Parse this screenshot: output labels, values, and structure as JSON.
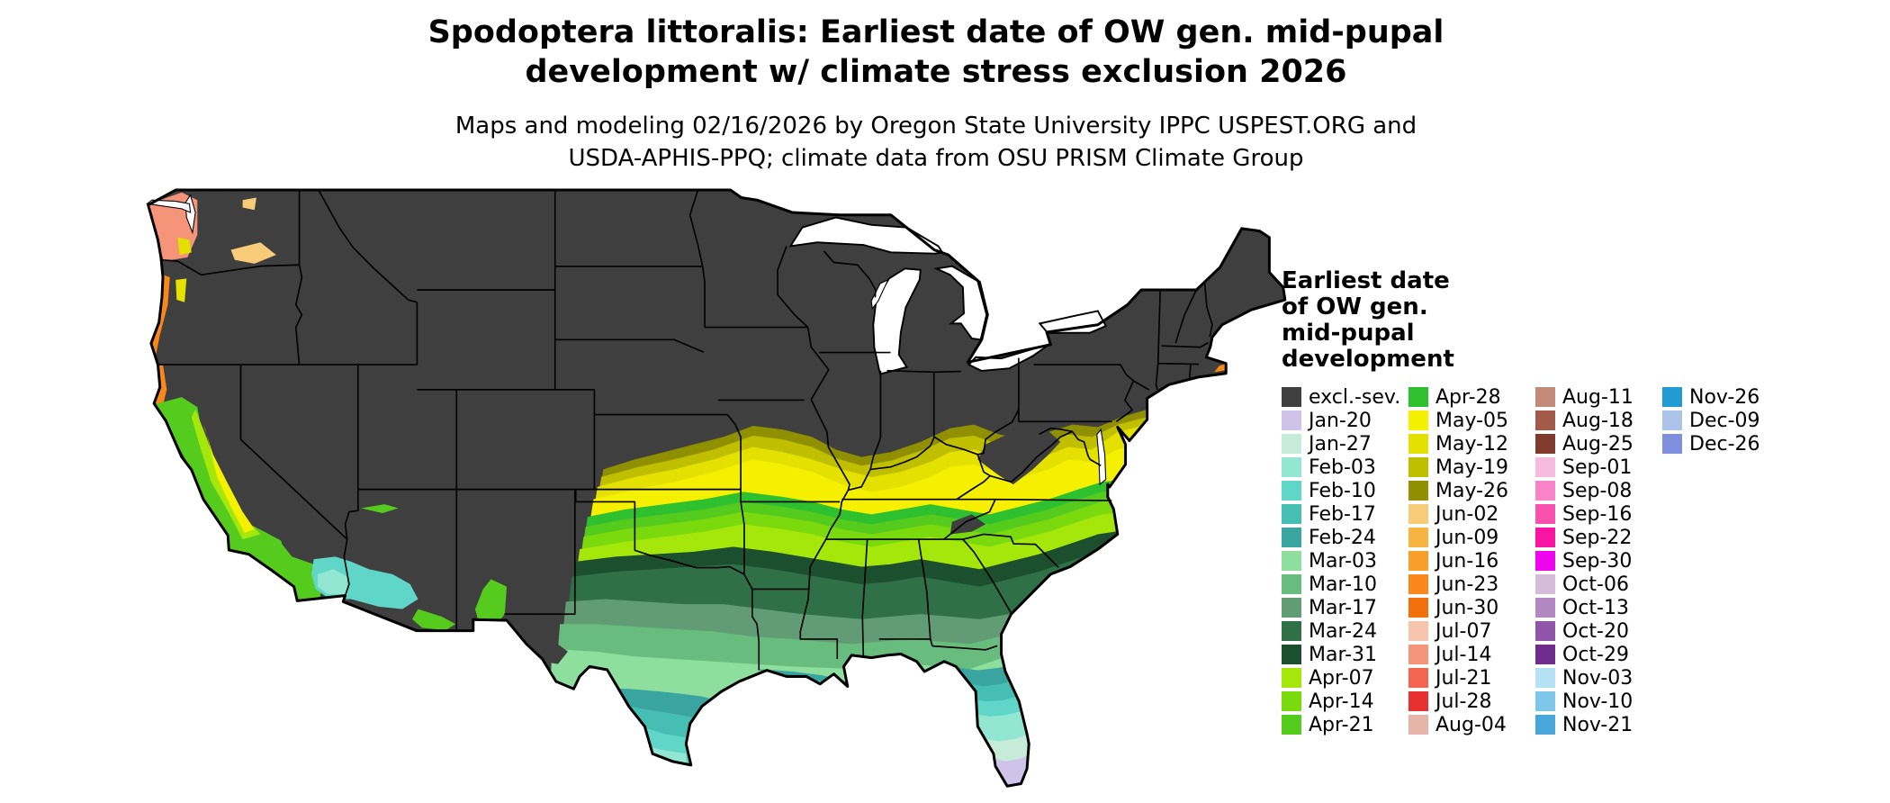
{
  "title": {
    "line1": "Spodoptera littoralis: Earliest date of OW gen. mid-pupal",
    "line2": "development w/ climate stress exclusion 2026"
  },
  "subtitle": {
    "line1": "Maps and modeling 02/16/2026 by Oregon State University IPPC USPEST.ORG and",
    "line2": "USDA-APHIS-PPQ; climate data from OSU PRISM Climate Group"
  },
  "legend": {
    "title_lines": [
      "Earliest date",
      "of OW gen.",
      "mid-pupal",
      "development"
    ],
    "rows_per_column": [
      15,
      15,
      15,
      3
    ],
    "entries": [
      {
        "label": "excl.-sev.",
        "color": "#3f3f3f"
      },
      {
        "label": "Jan-20",
        "color": "#cfc3ea"
      },
      {
        "label": "Jan-27",
        "color": "#c6ecd9"
      },
      {
        "label": "Feb-03",
        "color": "#93e6d2"
      },
      {
        "label": "Feb-10",
        "color": "#5fd6c8"
      },
      {
        "label": "Feb-17",
        "color": "#46beb4"
      },
      {
        "label": "Feb-24",
        "color": "#3aa5a0"
      },
      {
        "label": "Mar-03",
        "color": "#8edf9d"
      },
      {
        "label": "Mar-10",
        "color": "#68bd7e"
      },
      {
        "label": "Mar-17",
        "color": "#619c74"
      },
      {
        "label": "Mar-24",
        "color": "#2f7046"
      },
      {
        "label": "Mar-31",
        "color": "#1c4f2d"
      },
      {
        "label": "Apr-07",
        "color": "#a6e70b"
      },
      {
        "label": "Apr-14",
        "color": "#7ada0e"
      },
      {
        "label": "Apr-21",
        "color": "#55cb1e"
      },
      {
        "label": "Apr-28",
        "color": "#2fc02f"
      },
      {
        "label": "May-05",
        "color": "#f4f000"
      },
      {
        "label": "May-12",
        "color": "#e4e000"
      },
      {
        "label": "May-19",
        "color": "#bfbf00"
      },
      {
        "label": "May-26",
        "color": "#8f8f00"
      },
      {
        "label": "Jun-02",
        "color": "#f7cb77"
      },
      {
        "label": "Jun-09",
        "color": "#f8b440"
      },
      {
        "label": "Jun-16",
        "color": "#f99e29"
      },
      {
        "label": "Jun-23",
        "color": "#f9871a"
      },
      {
        "label": "Jun-30",
        "color": "#f3700d"
      },
      {
        "label": "Jul-07",
        "color": "#f7c5ae"
      },
      {
        "label": "Jul-14",
        "color": "#f59478"
      },
      {
        "label": "Jul-21",
        "color": "#f3654e"
      },
      {
        "label": "Jul-28",
        "color": "#e93030"
      },
      {
        "label": "Aug-04",
        "color": "#e6b4a8"
      },
      {
        "label": "Aug-11",
        "color": "#c28b78"
      },
      {
        "label": "Aug-18",
        "color": "#a25b4a"
      },
      {
        "label": "Aug-25",
        "color": "#7f3b2b"
      },
      {
        "label": "Sep-01",
        "color": "#f7bbdf"
      },
      {
        "label": "Sep-08",
        "color": "#f884c7"
      },
      {
        "label": "Sep-16",
        "color": "#f851ae"
      },
      {
        "label": "Sep-22",
        "color": "#f815a1"
      },
      {
        "label": "Sep-30",
        "color": "#ee05ee"
      },
      {
        "label": "Oct-06",
        "color": "#d5bdda"
      },
      {
        "label": "Oct-13",
        "color": "#b288c3"
      },
      {
        "label": "Oct-20",
        "color": "#9055a9"
      },
      {
        "label": "Oct-29",
        "color": "#6f2e8d"
      },
      {
        "label": "Nov-03",
        "color": "#b4e1f3"
      },
      {
        "label": "Nov-10",
        "color": "#7dc5e9"
      },
      {
        "label": "Nov-21",
        "color": "#48a6d9"
      },
      {
        "label": "Nov-26",
        "color": "#209bd3"
      },
      {
        "label": "Dec-09",
        "color": "#aac3e9"
      },
      {
        "label": "Dec-26",
        "color": "#7e90dd"
      }
    ]
  }
}
